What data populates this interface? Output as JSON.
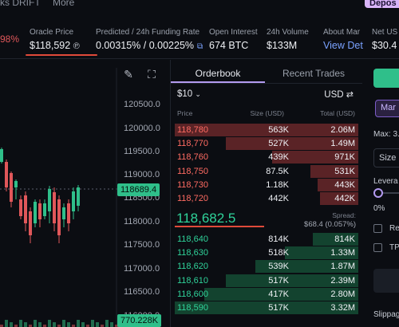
{
  "top": {
    "cut_left": "ks DRIFT",
    "cut_more": "More",
    "deposit_label": "Depos",
    "change_pct": "98%",
    "stats": [
      {
        "label": "Oracle Price",
        "value": "$118,592"
      },
      {
        "label": "Predicted / 24h Funding Rate",
        "value": "0.00315% / 0.00225%"
      },
      {
        "label": "Open Interest",
        "value": "674 BTC"
      },
      {
        "label": "24h Volume",
        "value": "$133M"
      },
      {
        "label": "About Mar",
        "value": "View Det"
      },
      {
        "label": "Net US",
        "value": "$30.4"
      }
    ]
  },
  "chart": {
    "y_ticks": [
      "120500.0",
      "120000.0",
      "119500.0",
      "119000.0",
      "118500.0",
      "118000.0",
      "117500.0",
      "117000.0",
      "116500.0",
      "116000.0"
    ],
    "last_price_tag": "118689.4",
    "volume_tag": "770.228K"
  },
  "orderbook": {
    "tabs": [
      "Orderbook",
      "Recent Trades"
    ],
    "tick_size": "$10",
    "currency": "USD",
    "headers": {
      "price": "Price",
      "size": "Size (USD)",
      "total": "Total (USD)"
    },
    "asks": [
      {
        "price": "118,780",
        "size": "563K",
        "total": "2.06M",
        "depth": 1.0
      },
      {
        "price": "118,770",
        "size": "527K",
        "total": "1.49M",
        "depth": 0.72
      },
      {
        "price": "118,760",
        "size": "439K",
        "total": "971K",
        "depth": 0.47
      },
      {
        "price": "118,750",
        "size": "87.5K",
        "total": "531K",
        "depth": 0.26
      },
      {
        "price": "118,730",
        "size": "1.18K",
        "total": "443K",
        "depth": 0.22
      },
      {
        "price": "118,720",
        "size": "442K",
        "total": "442K",
        "depth": 0.21
      }
    ],
    "mid_price": "118,682.5",
    "spread_label": "Spread:",
    "spread_value": "$68.4 (0.057%)",
    "bids": [
      {
        "price": "118,640",
        "size": "814K",
        "total": "814K",
        "depth": 0.25
      },
      {
        "price": "118,630",
        "size": "518K",
        "total": "1.33M",
        "depth": 0.4
      },
      {
        "price": "118,620",
        "size": "539K",
        "total": "1.87M",
        "depth": 0.56
      },
      {
        "price": "118,610",
        "size": "517K",
        "total": "2.39M",
        "depth": 0.72
      },
      {
        "price": "118,600",
        "size": "417K",
        "total": "2.80M",
        "depth": 0.84
      },
      {
        "price": "118,590",
        "size": "517K",
        "total": "3.32M",
        "depth": 1.0
      }
    ]
  },
  "right_panel": {
    "tab": "Mar",
    "max_label": "Max: 3.",
    "size_label": "Size",
    "leverage_label": "Levera",
    "leverage_pct": "0%",
    "opt1": "Re",
    "opt2": "TP",
    "slippage_label": "Slippag"
  },
  "colors": {
    "ask": "#ff6b62",
    "bid": "#2fd39a",
    "accent": "#b39af0",
    "alert_underline": "#e04a3a"
  }
}
